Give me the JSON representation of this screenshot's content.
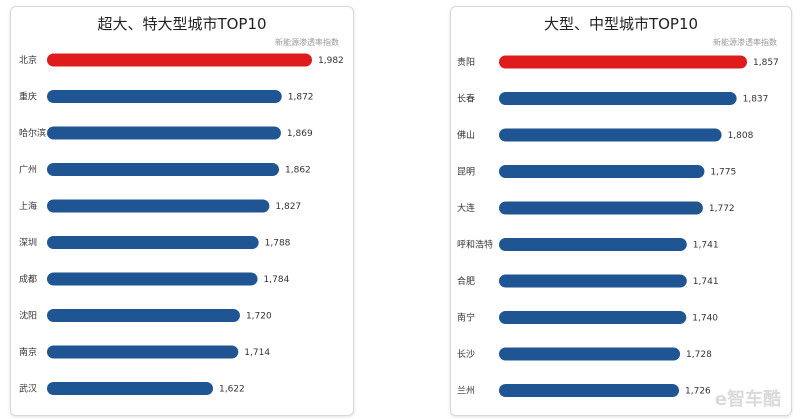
{
  "chart_data": [
    {
      "type": "bar",
      "orientation": "horizontal",
      "title": "超大、特大型城市TOP10",
      "subtitle": "新能源渗透率指数",
      "categories": [
        "北京",
        "重庆",
        "哈尔滨",
        "广州",
        "上海",
        "深圳",
        "成都",
        "沈阳",
        "南京",
        "武汉"
      ],
      "values": [
        1982,
        1872,
        1869,
        1862,
        1827,
        1788,
        1784,
        1720,
        1714,
        1622
      ],
      "value_labels": [
        "1,982",
        "1,872",
        "1,869",
        "1,862",
        "1,827",
        "1,788",
        "1,784",
        "1,720",
        "1,714",
        "1,622"
      ],
      "highlight_color": "#e01b1b",
      "bar_color": "#1f5592",
      "grid": false
    },
    {
      "type": "bar",
      "orientation": "horizontal",
      "title": "大型、中型城市TOP10",
      "subtitle": "新能源渗透率指数",
      "categories": [
        "贵阳",
        "长春",
        "佛山",
        "昆明",
        "大连",
        "呼和浩特",
        "合肥",
        "南宁",
        "长沙",
        "兰州"
      ],
      "values": [
        1857,
        1837,
        1808,
        1775,
        1772,
        1741,
        1741,
        1740,
        1728,
        1726
      ],
      "value_labels": [
        "1,857",
        "1,837",
        "1,808",
        "1,775",
        "1,772",
        "1,741",
        "1,741",
        "1,740",
        "1,728",
        "1,726"
      ],
      "highlight_color": "#e01b1b",
      "bar_color": "#1f5592",
      "grid": false
    }
  ],
  "watermark": "e智车酷"
}
